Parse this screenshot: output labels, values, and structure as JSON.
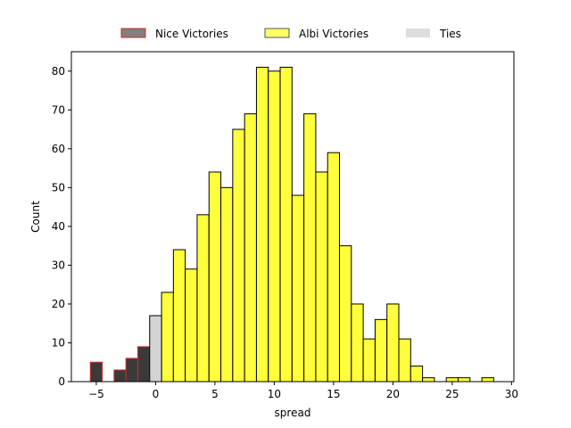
{
  "chart_data": {
    "type": "bar",
    "xlabel": "spread",
    "ylabel": "Count",
    "xlim": [
      -7.1,
      30.2
    ],
    "ylim": [
      0,
      85
    ],
    "xticks": [
      -5,
      0,
      5,
      10,
      15,
      20,
      25,
      30
    ],
    "yticks": [
      0,
      10,
      20,
      30,
      40,
      50,
      60,
      70,
      80
    ],
    "grid": false,
    "legend_position": "top-center-outside",
    "bin_width": 1,
    "series": [
      {
        "name": "Nice Victories",
        "fill": "#3a3a3a",
        "edge": "#d62728",
        "legend_fill": "#808080",
        "bins": [
          [
            -5.5,
            5
          ],
          [
            -3.5,
            3
          ],
          [
            -2.5,
            6
          ],
          [
            -1.5,
            9
          ]
        ]
      },
      {
        "name": "Albi Victories",
        "fill": "#ffff3c",
        "edge": "#000000",
        "legend_fill": "#ffff66",
        "bins": [
          [
            0.5,
            23
          ],
          [
            1.5,
            34
          ],
          [
            2.5,
            29
          ],
          [
            3.5,
            43
          ],
          [
            4.5,
            54
          ],
          [
            5.5,
            50
          ],
          [
            6.5,
            65
          ],
          [
            7.5,
            69
          ],
          [
            8.5,
            81
          ],
          [
            9.5,
            80
          ],
          [
            10.5,
            81
          ],
          [
            11.5,
            48
          ],
          [
            12.5,
            69
          ],
          [
            13.5,
            54
          ],
          [
            14.5,
            59
          ],
          [
            15.5,
            35
          ],
          [
            16.5,
            20
          ],
          [
            17.5,
            11
          ],
          [
            18.5,
            16
          ],
          [
            19.5,
            20
          ],
          [
            20.5,
            11
          ],
          [
            21.5,
            4
          ],
          [
            22.5,
            1
          ],
          [
            24.5,
            1
          ],
          [
            25.5,
            1
          ],
          [
            27.5,
            1
          ]
        ]
      },
      {
        "name": "Ties",
        "fill": "#d3d3d3",
        "edge": "#000000",
        "legend_fill": "#dddddd",
        "bins": [
          [
            -0.5,
            17
          ]
        ]
      }
    ]
  }
}
